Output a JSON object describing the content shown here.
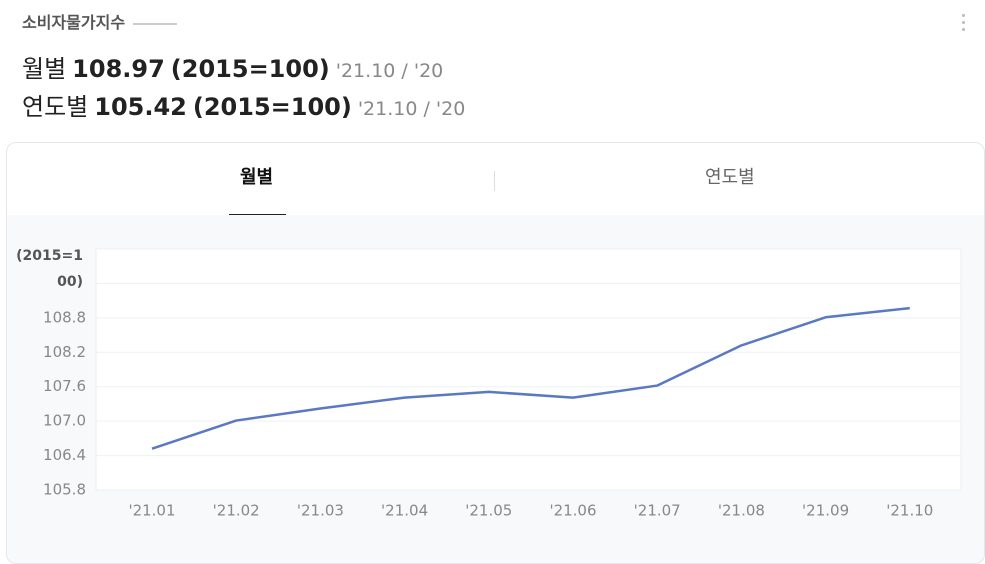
{
  "header": {
    "title": "소비자물가지수",
    "rows": [
      {
        "label": "월별",
        "value": "108.97",
        "unit": "(2015=100)",
        "date": "'21.10 / '20"
      },
      {
        "label": "연도별",
        "value": "105.42",
        "unit": "(2015=100)",
        "date": "'21.10 / '20"
      }
    ]
  },
  "tabs": [
    "월별",
    "연도별"
  ],
  "chart_data": {
    "type": "line",
    "y_label": "(2015=100)",
    "categories": [
      "'21.01",
      "'21.02",
      "'21.03",
      "'21.04",
      "'21.05",
      "'21.06",
      "'21.07",
      "'21.08",
      "'21.09",
      "'21.10"
    ],
    "series": [
      {
        "name": "월별",
        "color": "#5b78c2",
        "values": [
          106.52,
          107.01,
          107.22,
          107.41,
          107.51,
          107.41,
          107.62,
          108.32,
          108.81,
          108.97
        ]
      }
    ],
    "ylim": [
      105.8,
      110.0
    ],
    "yticks": [
      105.8,
      106.4,
      {
        "value": 107.0,
        "label": "107.0"
      },
      107.6,
      108.2,
      108.8,
      {
        "value": 109.4,
        "label": null
      },
      {
        "value": 110.0,
        "label": null
      }
    ],
    "grid": true
  }
}
